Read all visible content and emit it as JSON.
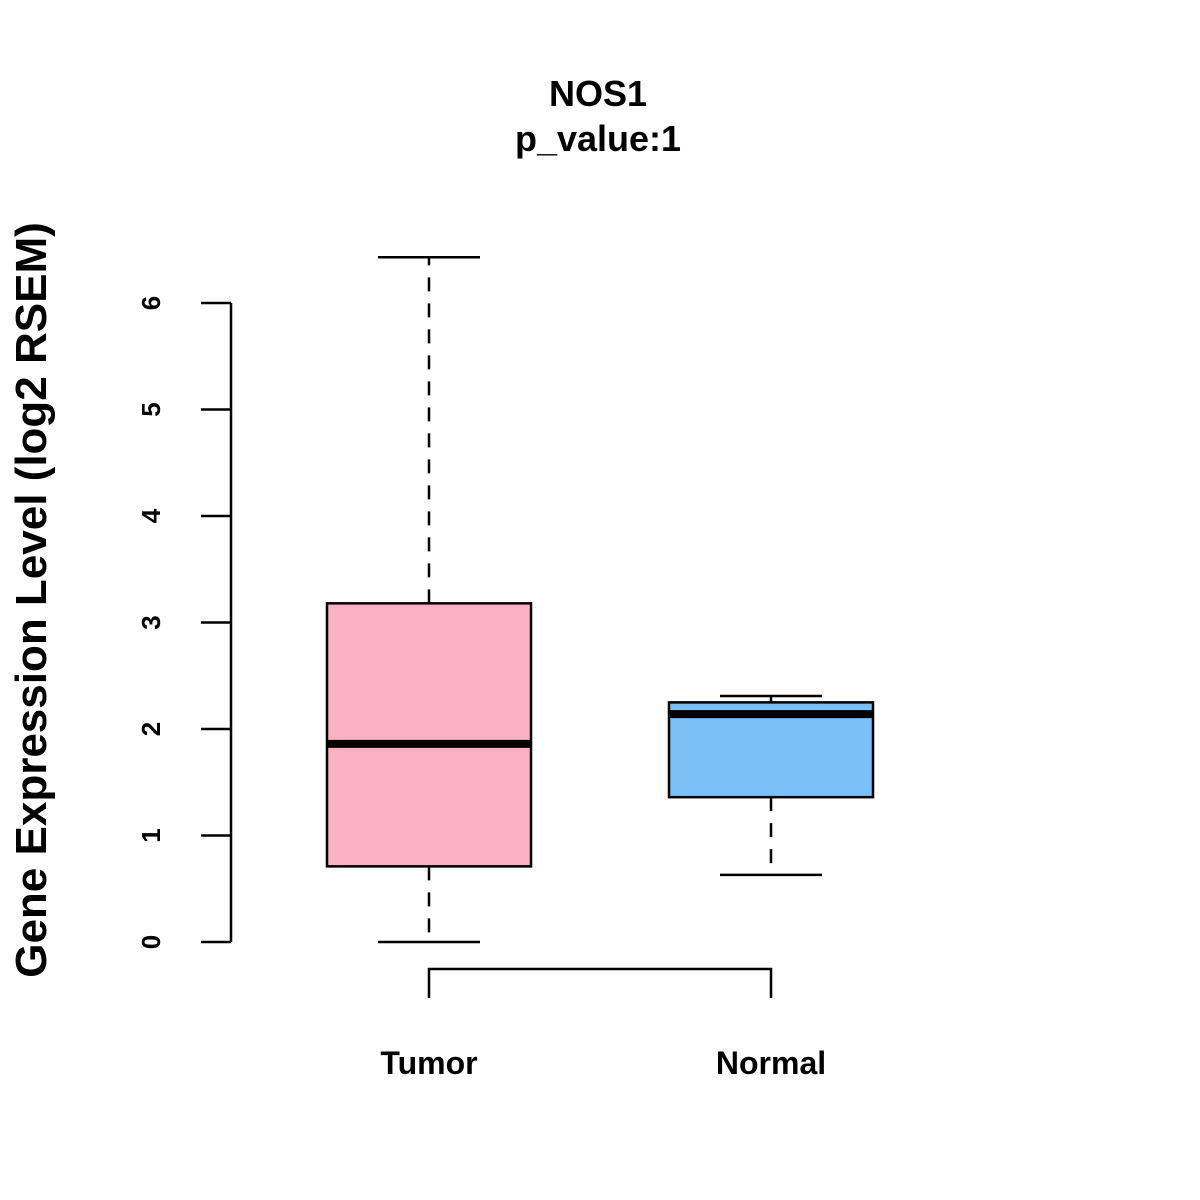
{
  "chart_data": {
    "type": "boxplot",
    "title": "NOS1",
    "subtitle": "p_value:1",
    "xlabel": "",
    "ylabel": "Gene Expression Level (log2 RSEM)",
    "ylim": [
      0,
      6
    ],
    "yticks": [
      "0",
      "1",
      "2",
      "3",
      "4",
      "5",
      "6"
    ],
    "categories": [
      "Tumor",
      "Normal"
    ],
    "boxes": [
      {
        "name": "Tumor",
        "min": 0.0,
        "q1": 0.71,
        "median": 1.86,
        "q3": 3.18,
        "max": 6.43,
        "color": "#FBB1C3"
      },
      {
        "name": "Normal",
        "min": 0.63,
        "q1": 1.36,
        "median": 2.14,
        "q3": 2.25,
        "max": 2.31,
        "color": "#7BC1F7"
      }
    ]
  }
}
